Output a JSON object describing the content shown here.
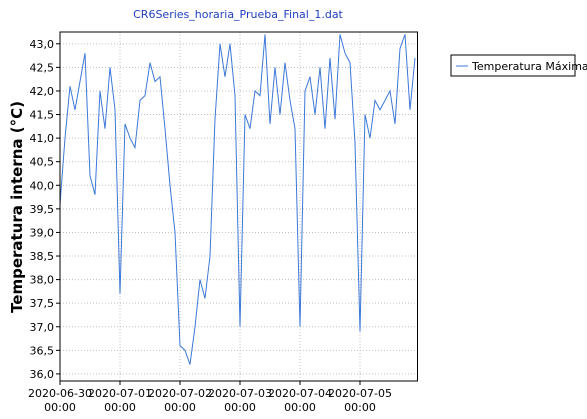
{
  "chart_data": {
    "type": "line",
    "title": "CR6Series_horaria_Prueba_Final_1.dat",
    "y_label": "Temperatura interna (°C)",
    "x": [
      "2020-06-30 00:00",
      "2020-06-30 02:00",
      "2020-06-30 04:00",
      "2020-06-30 06:00",
      "2020-06-30 08:00",
      "2020-06-30 10:00",
      "2020-06-30 12:00",
      "2020-06-30 14:00",
      "2020-06-30 16:00",
      "2020-06-30 18:00",
      "2020-06-30 20:00",
      "2020-06-30 22:00",
      "2020-07-01 00:00",
      "2020-07-01 02:00",
      "2020-07-01 04:00",
      "2020-07-01 06:00",
      "2020-07-01 08:00",
      "2020-07-01 10:00",
      "2020-07-01 12:00",
      "2020-07-01 14:00",
      "2020-07-01 16:00",
      "2020-07-01 18:00",
      "2020-07-01 20:00",
      "2020-07-01 22:00",
      "2020-07-02 00:00",
      "2020-07-02 02:00",
      "2020-07-02 04:00",
      "2020-07-02 06:00",
      "2020-07-02 08:00",
      "2020-07-02 10:00",
      "2020-07-02 12:00",
      "2020-07-02 14:00",
      "2020-07-02 16:00",
      "2020-07-02 18:00",
      "2020-07-02 20:00",
      "2020-07-02 22:00",
      "2020-07-03 00:00",
      "2020-07-03 02:00",
      "2020-07-03 04:00",
      "2020-07-03 06:00",
      "2020-07-03 08:00",
      "2020-07-03 10:00",
      "2020-07-03 12:00",
      "2020-07-03 14:00",
      "2020-07-03 16:00",
      "2020-07-03 18:00",
      "2020-07-03 20:00",
      "2020-07-03 22:00",
      "2020-07-04 00:00",
      "2020-07-04 02:00",
      "2020-07-04 04:00",
      "2020-07-04 06:00",
      "2020-07-04 08:00",
      "2020-07-04 10:00",
      "2020-07-04 12:00",
      "2020-07-04 14:00",
      "2020-07-04 16:00",
      "2020-07-04 18:00",
      "2020-07-04 20:00",
      "2020-07-04 22:00",
      "2020-07-05 00:00",
      "2020-07-05 02:00",
      "2020-07-05 04:00",
      "2020-07-05 06:00",
      "2020-07-05 08:00",
      "2020-07-05 10:00",
      "2020-07-05 12:00",
      "2020-07-05 14:00",
      "2020-07-05 16:00",
      "2020-07-05 18:00",
      "2020-07-05 20:00",
      "2020-07-05 22:00"
    ],
    "series": [
      {
        "name": "Temperatura Máxima",
        "color": "#3c78d8",
        "values": [
          39.6,
          41.0,
          42.1,
          41.6,
          42.2,
          42.8,
          40.2,
          39.8,
          42.0,
          41.2,
          42.5,
          41.6,
          37.7,
          41.3,
          41.0,
          40.8,
          41.8,
          41.9,
          42.6,
          42.2,
          42.3,
          41.2,
          40.0,
          39.0,
          36.6,
          36.5,
          36.2,
          37.0,
          38.0,
          37.6,
          38.5,
          41.4,
          43.0,
          42.3,
          43.0,
          41.9,
          37.0,
          41.5,
          41.2,
          42.0,
          41.9,
          43.2,
          41.3,
          42.5,
          41.5,
          42.6,
          41.8,
          41.2,
          37.0,
          42.0,
          42.3,
          41.5,
          42.5,
          41.2,
          42.7,
          41.4,
          43.2,
          42.8,
          42.6,
          40.9,
          36.9,
          41.5,
          41.0,
          41.8,
          41.6,
          41.8,
          42.0,
          41.3,
          42.9,
          43.2,
          41.6,
          42.7
        ]
      }
    ],
    "xlim": [
      "2020-06-30 00:00",
      "2020-07-05 23:00"
    ],
    "xticks": [
      "2020-06-30 00:00",
      "2020-07-01 00:00",
      "2020-07-02 00:00",
      "2020-07-03 00:00",
      "2020-07-04 00:00",
      "2020-07-05 00:00"
    ],
    "ylim": [
      35.85,
      43.25
    ],
    "yticks": [
      {
        "value": 36,
        "label": "36,0"
      },
      {
        "value": 36.5,
        "label": "36,5"
      },
      {
        "value": 37,
        "label": "37,0"
      },
      {
        "value": 37.5,
        "label": "37,5"
      },
      {
        "value": 38,
        "label": "38,0"
      },
      {
        "value": 38.5,
        "label": "38,5"
      },
      {
        "value": 39,
        "label": "39,0"
      },
      {
        "value": 39.5,
        "label": "39,5"
      },
      {
        "value": 40,
        "label": "40,0"
      },
      {
        "value": 40.5,
        "label": "40,5"
      },
      {
        "value": 41,
        "label": "41,0"
      },
      {
        "value": 41.5,
        "label": "41,5"
      },
      {
        "value": 42,
        "label": "42,0"
      },
      {
        "value": 42.5,
        "label": "42,5"
      },
      {
        "value": 43,
        "label": "43,0"
      }
    ],
    "grid": true,
    "legend": "right"
  }
}
